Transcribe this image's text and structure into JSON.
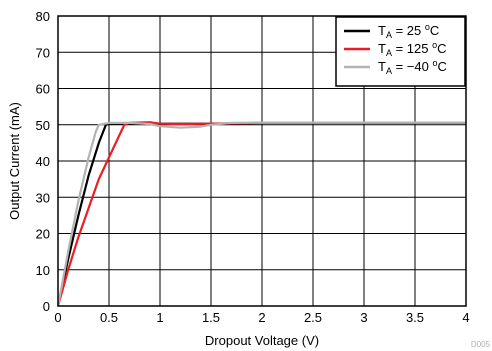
{
  "chart_data": {
    "type": "line",
    "xlabel": "Dropout Voltage (V)",
    "ylabel": "Output Current (mA)",
    "xlim": [
      0,
      4
    ],
    "ylim": [
      0,
      80
    ],
    "x_ticks": [
      "0",
      "0.5",
      "1",
      "1.5",
      "2",
      "2.5",
      "3",
      "3.5",
      "4"
    ],
    "y_ticks": [
      "0",
      "10",
      "20",
      "30",
      "40",
      "50",
      "60",
      "70",
      "80"
    ],
    "grid": true,
    "legend_position": "top-right",
    "watermark": "D005",
    "series": [
      {
        "name": "T_A = 25 °C",
        "legend": {
          "prefix": "T",
          "sub": "A",
          "mid": " = 25 ",
          "sup": "o",
          "suffix": "C"
        },
        "color": "#000000",
        "points": [
          [
            0,
            0
          ],
          [
            0.1,
            13
          ],
          [
            0.2,
            25
          ],
          [
            0.3,
            36
          ],
          [
            0.4,
            45
          ],
          [
            0.47,
            50
          ],
          [
            0.5,
            50.3
          ],
          [
            0.7,
            50.3
          ],
          [
            1.0,
            50.3
          ],
          [
            1.5,
            50.3
          ],
          [
            2.0,
            50.5
          ],
          [
            3.0,
            50.5
          ],
          [
            4.0,
            50.5
          ]
        ]
      },
      {
        "name": "T_A = 125 °C",
        "legend": {
          "prefix": "T",
          "sub": "A",
          "mid": " = 125 ",
          "sup": "o",
          "suffix": "C"
        },
        "color": "#ee1c24",
        "points": [
          [
            0,
            0
          ],
          [
            0.1,
            10
          ],
          [
            0.2,
            19
          ],
          [
            0.3,
            27
          ],
          [
            0.4,
            35
          ],
          [
            0.5,
            41
          ],
          [
            0.6,
            47
          ],
          [
            0.65,
            50
          ],
          [
            0.7,
            50.5
          ],
          [
            0.9,
            50.7
          ],
          [
            1.0,
            50.3
          ],
          [
            1.2,
            50.2
          ],
          [
            1.5,
            50.3
          ],
          [
            2.0,
            50.5
          ],
          [
            3.0,
            50.5
          ],
          [
            4.0,
            50.5
          ]
        ]
      },
      {
        "name": "T_A = –40 °C",
        "legend": {
          "prefix": "T",
          "sub": "A",
          "mid": " = −40 ",
          "sup": "o",
          "suffix": "C"
        },
        "color": "#b3b3b3",
        "points": [
          [
            0,
            0
          ],
          [
            0.1,
            15
          ],
          [
            0.2,
            29
          ],
          [
            0.3,
            41
          ],
          [
            0.37,
            48
          ],
          [
            0.4,
            50
          ],
          [
            0.5,
            50.5
          ],
          [
            0.7,
            50.5
          ],
          [
            0.9,
            50.2
          ],
          [
            1.0,
            49.6
          ],
          [
            1.2,
            49.2
          ],
          [
            1.4,
            49.5
          ],
          [
            1.5,
            50.0
          ],
          [
            1.7,
            50.5
          ],
          [
            2.0,
            50.6
          ],
          [
            3.0,
            50.6
          ],
          [
            4.0,
            50.6
          ]
        ]
      }
    ]
  }
}
